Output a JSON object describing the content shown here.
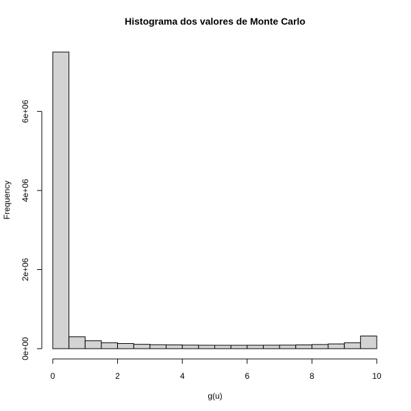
{
  "chart_data": {
    "type": "bar",
    "title": "Histograma dos valores de Monte Carlo",
    "xlabel": "g(u)",
    "ylabel": "Frequency",
    "xlim": [
      0,
      10
    ],
    "ylim": [
      0,
      7500000
    ],
    "bin_width": 0.5,
    "bins": [
      {
        "x0": 0.0,
        "x1": 0.5,
        "count": 7500000
      },
      {
        "x0": 0.5,
        "x1": 1.0,
        "count": 300000
      },
      {
        "x0": 1.0,
        "x1": 1.5,
        "count": 200000
      },
      {
        "x0": 1.5,
        "x1": 2.0,
        "count": 150000
      },
      {
        "x0": 2.0,
        "x1": 2.5,
        "count": 130000
      },
      {
        "x0": 2.5,
        "x1": 3.0,
        "count": 110000
      },
      {
        "x0": 3.0,
        "x1": 3.5,
        "count": 100000
      },
      {
        "x0": 3.5,
        "x1": 4.0,
        "count": 95000
      },
      {
        "x0": 4.0,
        "x1": 4.5,
        "count": 90000
      },
      {
        "x0": 4.5,
        "x1": 5.0,
        "count": 87000
      },
      {
        "x0": 5.0,
        "x1": 5.5,
        "count": 86000
      },
      {
        "x0": 5.5,
        "x1": 6.0,
        "count": 86000
      },
      {
        "x0": 6.0,
        "x1": 6.5,
        "count": 87000
      },
      {
        "x0": 6.5,
        "x1": 7.0,
        "count": 88000
      },
      {
        "x0": 7.0,
        "x1": 7.5,
        "count": 90000
      },
      {
        "x0": 7.5,
        "x1": 8.0,
        "count": 95000
      },
      {
        "x0": 8.0,
        "x1": 8.5,
        "count": 105000
      },
      {
        "x0": 8.5,
        "x1": 9.0,
        "count": 120000
      },
      {
        "x0": 9.0,
        "x1": 9.5,
        "count": 150000
      },
      {
        "x0": 9.5,
        "x1": 10.0,
        "count": 320000
      }
    ],
    "x_ticks": [
      {
        "value": 0,
        "label": "0"
      },
      {
        "value": 2,
        "label": "2"
      },
      {
        "value": 4,
        "label": "4"
      },
      {
        "value": 6,
        "label": "6"
      },
      {
        "value": 8,
        "label": "8"
      },
      {
        "value": 10,
        "label": "10"
      }
    ],
    "y_ticks": [
      {
        "value": 0,
        "label": "0e+00"
      },
      {
        "value": 2000000,
        "label": "2e+06"
      },
      {
        "value": 4000000,
        "label": "4e+06"
      },
      {
        "value": 6000000,
        "label": "6e+06"
      }
    ],
    "bar_fill": "#d3d3d3",
    "bar_stroke": "#000000",
    "grid": false,
    "legend": "none"
  }
}
